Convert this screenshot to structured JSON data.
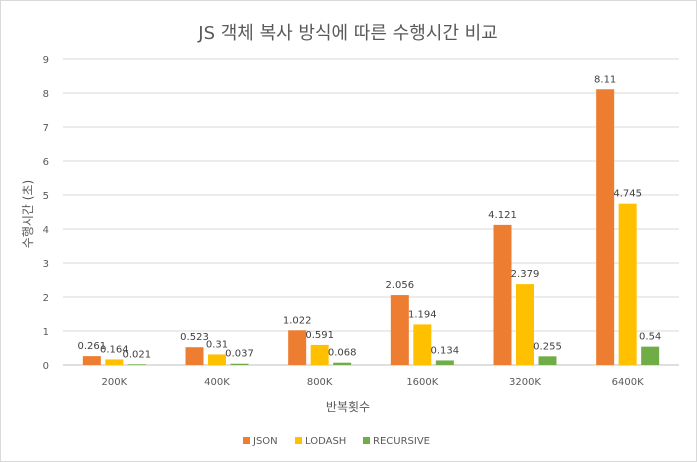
{
  "chart_data": {
    "type": "bar",
    "title": "JS 객체 복사 방식에 따른 수행시간 비교",
    "xlabel": "반복횟수",
    "ylabel": "수행시간 (초)",
    "ylim": [
      0,
      9
    ],
    "yticks": [
      0,
      1,
      2,
      3,
      4,
      5,
      6,
      7,
      8,
      9
    ],
    "grid": true,
    "legend_position": "bottom",
    "categories": [
      "200K",
      "400K",
      "800K",
      "1600K",
      "3200K",
      "6400K"
    ],
    "series": [
      {
        "name": "JSON",
        "color": "#ED7D31",
        "values": [
          0.261,
          0.523,
          1.022,
          2.056,
          4.121,
          8.11
        ],
        "labels": [
          "0.261",
          "0.523",
          "1.022",
          "2.056",
          "4.121",
          "8.11"
        ]
      },
      {
        "name": "LODASH",
        "color": "#FFC000",
        "values": [
          0.164,
          0.31,
          0.591,
          1.194,
          2.379,
          4.745
        ],
        "labels": [
          "0.164",
          "0.31",
          "0.591",
          "1.194",
          "2.379",
          "4.745"
        ]
      },
      {
        "name": "RECURSIVE",
        "color": "#70AD47",
        "values": [
          0.021,
          0.037,
          0.068,
          0.134,
          0.255,
          0.54
        ],
        "labels": [
          "0.021",
          "0.037",
          "0.068",
          "0.134",
          "0.255",
          "0.54"
        ]
      }
    ]
  }
}
